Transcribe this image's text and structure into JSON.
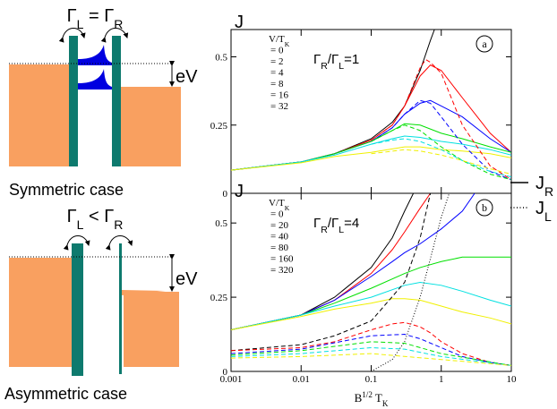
{
  "diagrams": [
    {
      "title": [
        "Γ",
        "L",
        " = Γ",
        "R"
      ],
      "energy": "eV",
      "caption": "Symmetric case"
    },
    {
      "title": [
        "Γ",
        "L",
        " < Γ",
        "R"
      ],
      "energy": "eV",
      "caption": "Asymmetric case"
    }
  ],
  "line_legend": [
    {
      "label": [
        "J",
        "R"
      ],
      "style": "solid"
    },
    {
      "label": [
        "J",
        "L"
      ],
      "style": "dotted"
    }
  ],
  "chart_data": [
    {
      "type": "line",
      "ylabel": "J",
      "subtitle": [
        "Γ",
        "R",
        "/Γ",
        "L",
        "=1"
      ],
      "panel_label": "a",
      "legend_title": [
        "V/T",
        "K"
      ],
      "xscale": "log",
      "xlim": [
        0.001,
        10
      ],
      "xticks": [
        0.001,
        0.01,
        0.1,
        1,
        10
      ],
      "ylim": [
        0,
        0.6
      ],
      "yticks": [
        0,
        0.25,
        0.5
      ],
      "series": [
        {
          "name": "= 0",
          "color": "#000000",
          "style": "solid",
          "x": [
            0.001,
            0.01,
            0.03,
            0.1,
            0.2,
            0.3,
            0.5,
            0.7,
            0.8
          ],
          "values": [
            0.085,
            0.115,
            0.145,
            0.2,
            0.26,
            0.32,
            0.45,
            0.56,
            0.6
          ]
        },
        {
          "name": "= 2",
          "color": "#ff0000",
          "style": "solid",
          "x": [
            0.001,
            0.01,
            0.03,
            0.1,
            0.2,
            0.3,
            0.5,
            0.7,
            1,
            2,
            5,
            10
          ],
          "values": [
            0.085,
            0.115,
            0.145,
            0.195,
            0.25,
            0.32,
            0.43,
            0.47,
            0.45,
            0.35,
            0.22,
            0.15
          ]
        },
        {
          "name": "= 4",
          "color": "#0000ff",
          "style": "solid",
          "x": [
            0.001,
            0.01,
            0.03,
            0.1,
            0.2,
            0.3,
            0.5,
            0.7,
            1,
            2,
            5,
            10
          ],
          "values": [
            0.085,
            0.115,
            0.145,
            0.19,
            0.24,
            0.29,
            0.33,
            0.34,
            0.32,
            0.28,
            0.2,
            0.15
          ]
        },
        {
          "name": "= 8",
          "color": "#00e000",
          "style": "solid",
          "x": [
            0.001,
            0.01,
            0.03,
            0.1,
            0.2,
            0.3,
            0.5,
            1,
            2,
            5,
            10
          ],
          "values": [
            0.085,
            0.115,
            0.145,
            0.19,
            0.23,
            0.255,
            0.25,
            0.22,
            0.2,
            0.17,
            0.15
          ]
        },
        {
          "name": "= 16",
          "color": "#00e0e0",
          "style": "solid",
          "x": [
            0.001,
            0.01,
            0.03,
            0.1,
            0.2,
            0.3,
            0.5,
            1,
            2,
            5,
            10
          ],
          "values": [
            0.085,
            0.115,
            0.14,
            0.18,
            0.2,
            0.21,
            0.205,
            0.19,
            0.18,
            0.16,
            0.14
          ]
        },
        {
          "name": "= 32",
          "color": "#f0f000",
          "style": "solid",
          "x": [
            0.001,
            0.01,
            0.03,
            0.1,
            0.3,
            0.5,
            1,
            2,
            5,
            10
          ],
          "values": [
            0.085,
            0.112,
            0.135,
            0.15,
            0.17,
            0.17,
            0.16,
            0.155,
            0.145,
            0.13
          ]
        },
        {
          "color": "#ff0000",
          "style": "dashed",
          "x": [
            0.1,
            0.2,
            0.3,
            0.5,
            0.6,
            0.7,
            1,
            2,
            5,
            10
          ],
          "values": [
            0.195,
            0.25,
            0.32,
            0.46,
            0.49,
            0.48,
            0.44,
            0.25,
            0.1,
            0.05
          ]
        },
        {
          "color": "#0000ff",
          "style": "dashed",
          "x": [
            0.1,
            0.2,
            0.3,
            0.5,
            0.7,
            1,
            2,
            5,
            10
          ],
          "values": [
            0.19,
            0.24,
            0.29,
            0.34,
            0.33,
            0.28,
            0.18,
            0.08,
            0.05
          ]
        },
        {
          "color": "#00e000",
          "style": "dashed",
          "x": [
            0.1,
            0.2,
            0.3,
            0.5,
            1,
            2,
            5,
            10
          ],
          "values": [
            0.19,
            0.23,
            0.25,
            0.23,
            0.17,
            0.12,
            0.07,
            0.05
          ]
        },
        {
          "color": "#00e0e0",
          "style": "dashed",
          "x": [
            0.1,
            0.2,
            0.3,
            0.5,
            1,
            2,
            5,
            10
          ],
          "values": [
            0.18,
            0.195,
            0.2,
            0.19,
            0.16,
            0.12,
            0.08,
            0.06
          ]
        },
        {
          "color": "#f0f000",
          "style": "dashed",
          "x": [
            0.1,
            0.3,
            0.5,
            1,
            2,
            5,
            10
          ],
          "values": [
            0.145,
            0.16,
            0.155,
            0.14,
            0.12,
            0.09,
            0.07
          ]
        }
      ]
    },
    {
      "type": "line",
      "ylabel": "J",
      "subtitle": [
        "Γ",
        "R",
        "/Γ",
        "L",
        "=4"
      ],
      "panel_label": "b",
      "legend_title": [
        "V/T",
        "K"
      ],
      "xlabel": [
        "B",
        "1/2",
        " T",
        "K"
      ],
      "xscale": "log",
      "xlim": [
        0.001,
        10
      ],
      "xticks": [
        0.001,
        0.01,
        0.1,
        1,
        10
      ],
      "ylim": [
        0,
        0.6
      ],
      "yticks": [
        0,
        0.25,
        0.5
      ],
      "series": [
        {
          "name": "= 0",
          "color": "#000000",
          "style": "solid",
          "x": [
            0.001,
            0.01,
            0.03,
            0.1,
            0.2,
            0.3,
            0.4
          ],
          "values": [
            0.14,
            0.19,
            0.25,
            0.35,
            0.45,
            0.54,
            0.6
          ]
        },
        {
          "name": "= 20",
          "color": "#ff0000",
          "style": "solid",
          "x": [
            0.001,
            0.01,
            0.03,
            0.1,
            0.2,
            0.3,
            0.5,
            0.7
          ],
          "values": [
            0.14,
            0.19,
            0.24,
            0.33,
            0.41,
            0.47,
            0.55,
            0.6
          ]
        },
        {
          "name": "= 40",
          "color": "#0000ff",
          "style": "solid",
          "x": [
            0.001,
            0.01,
            0.03,
            0.1,
            0.2,
            0.3,
            0.5,
            1,
            2,
            3
          ],
          "values": [
            0.14,
            0.19,
            0.24,
            0.32,
            0.37,
            0.4,
            0.43,
            0.48,
            0.54,
            0.6
          ]
        },
        {
          "name": "= 80",
          "color": "#00e000",
          "style": "solid",
          "x": [
            0.001,
            0.01,
            0.03,
            0.1,
            0.3,
            0.5,
            1,
            2,
            5,
            10
          ],
          "values": [
            0.14,
            0.19,
            0.23,
            0.28,
            0.33,
            0.35,
            0.37,
            0.385,
            0.385,
            0.385
          ]
        },
        {
          "name": "= 160",
          "color": "#00e0e0",
          "style": "solid",
          "x": [
            0.001,
            0.01,
            0.03,
            0.1,
            0.3,
            0.5,
            1,
            2,
            5,
            10
          ],
          "values": [
            0.14,
            0.19,
            0.22,
            0.25,
            0.29,
            0.3,
            0.29,
            0.27,
            0.24,
            0.22
          ]
        },
        {
          "name": "= 320",
          "color": "#f0f000",
          "style": "solid",
          "x": [
            0.001,
            0.01,
            0.03,
            0.1,
            0.2,
            0.3,
            0.5,
            1,
            2,
            5,
            10
          ],
          "values": [
            0.14,
            0.185,
            0.21,
            0.23,
            0.245,
            0.245,
            0.24,
            0.22,
            0.2,
            0.18,
            0.16
          ]
        },
        {
          "color": "#000000",
          "style": "dashed",
          "x": [
            0.001,
            0.01,
            0.03,
            0.1,
            0.3,
            0.5,
            0.7
          ],
          "values": [
            0.07,
            0.09,
            0.12,
            0.17,
            0.3,
            0.45,
            0.6
          ]
        },
        {
          "color": "#000000",
          "style": "dotted",
          "x": [
            0.1,
            0.2,
            0.3,
            0.5,
            0.7,
            1,
            1.3
          ],
          "values": [
            0.0,
            0.04,
            0.1,
            0.25,
            0.38,
            0.52,
            0.6
          ]
        },
        {
          "color": "#ff0000",
          "style": "dashed",
          "x": [
            0.001,
            0.01,
            0.03,
            0.1,
            0.2,
            0.3,
            0.5,
            0.7,
            1,
            2,
            5,
            10
          ],
          "values": [
            0.07,
            0.08,
            0.1,
            0.14,
            0.16,
            0.165,
            0.15,
            0.13,
            0.1,
            0.06,
            0.03,
            0.02
          ]
        },
        {
          "color": "#0000ff",
          "style": "dashed",
          "x": [
            0.001,
            0.01,
            0.1,
            0.3,
            0.5,
            1,
            2,
            5,
            10
          ],
          "values": [
            0.06,
            0.075,
            0.12,
            0.125,
            0.11,
            0.08,
            0.05,
            0.03,
            0.02
          ]
        },
        {
          "color": "#00e000",
          "style": "dashed",
          "x": [
            0.001,
            0.01,
            0.1,
            0.3,
            1,
            10
          ],
          "values": [
            0.055,
            0.07,
            0.1,
            0.095,
            0.06,
            0.02
          ]
        },
        {
          "color": "#00e0e0",
          "style": "dashed",
          "x": [
            0.001,
            0.01,
            0.1,
            0.3,
            1,
            10
          ],
          "values": [
            0.05,
            0.06,
            0.08,
            0.075,
            0.05,
            0.02
          ]
        },
        {
          "color": "#f0f000",
          "style": "dashed",
          "x": [
            0.001,
            0.01,
            0.1,
            1,
            10
          ],
          "values": [
            0.045,
            0.05,
            0.06,
            0.04,
            0.02
          ]
        }
      ]
    }
  ]
}
